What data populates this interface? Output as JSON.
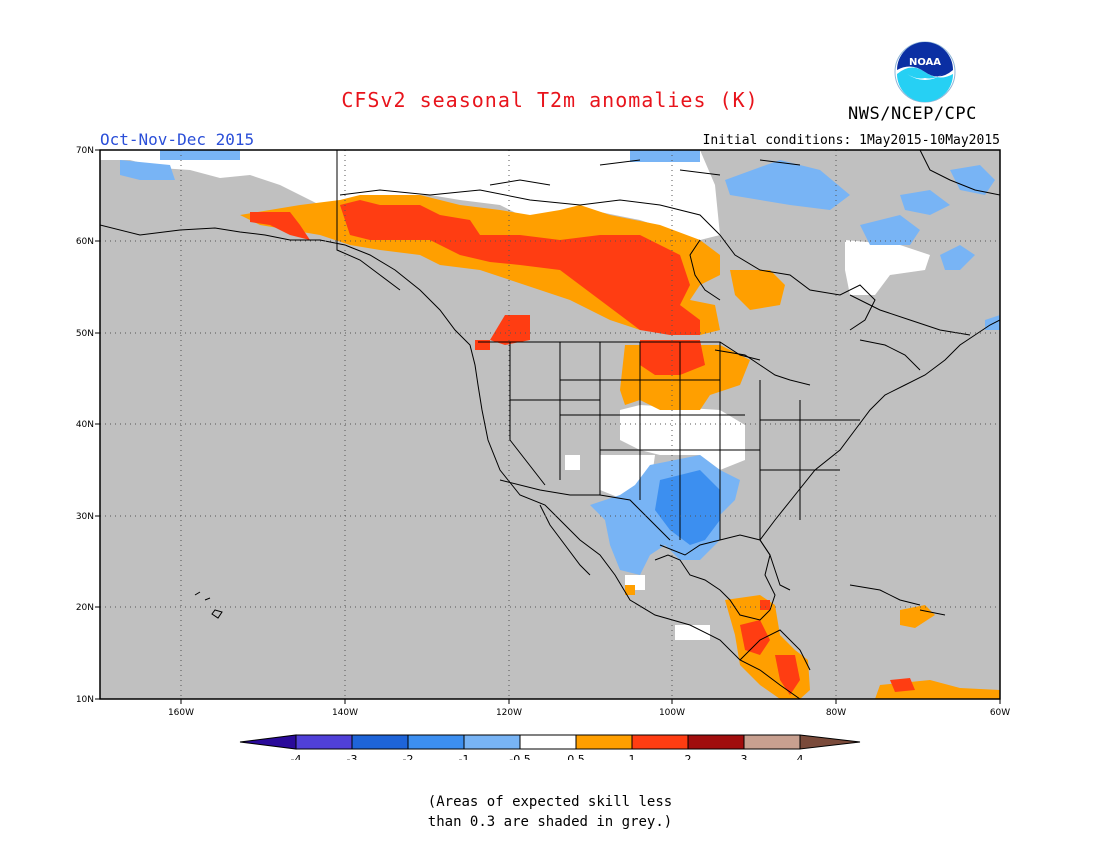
{
  "header": {
    "title": "CFSv2 seasonal T2m anomalies (K)",
    "agency": "NWS/NCEP/CPC",
    "logo_text": "NOAA",
    "season": "Oct-Nov-Dec 2015",
    "initial_conditions": "Initial conditions: 1May2015-10May2015"
  },
  "map": {
    "lat_labels": [
      "70N",
      "60N",
      "50N",
      "40N",
      "30N",
      "20N",
      "10N"
    ],
    "lon_labels": [
      "160W",
      "140W",
      "120W",
      "100W",
      "80W",
      "60W"
    ],
    "extent": {
      "lon": [
        -170,
        -60
      ],
      "lat": [
        10,
        70
      ]
    },
    "grid": "dotted",
    "skill_mask_color": "#c0c0c0"
  },
  "legend": {
    "ticks": [
      "-4",
      "-3",
      "-2",
      "-1",
      "-0.5",
      "0.5",
      "1",
      "2",
      "3",
      "4"
    ],
    "colors": [
      "#2a0a9a",
      "#5040d8",
      "#1e64d8",
      "#3c8ff0",
      "#78b4f5",
      "#ffffff",
      "#ff9f00",
      "#ff3d12",
      "#a10d0d",
      "#c8a090",
      "#7a4a3a"
    ]
  },
  "footnote": {
    "line1": "(Areas of expected skill less",
    "line2": "than 0.3 are shaded in grey.)"
  }
}
